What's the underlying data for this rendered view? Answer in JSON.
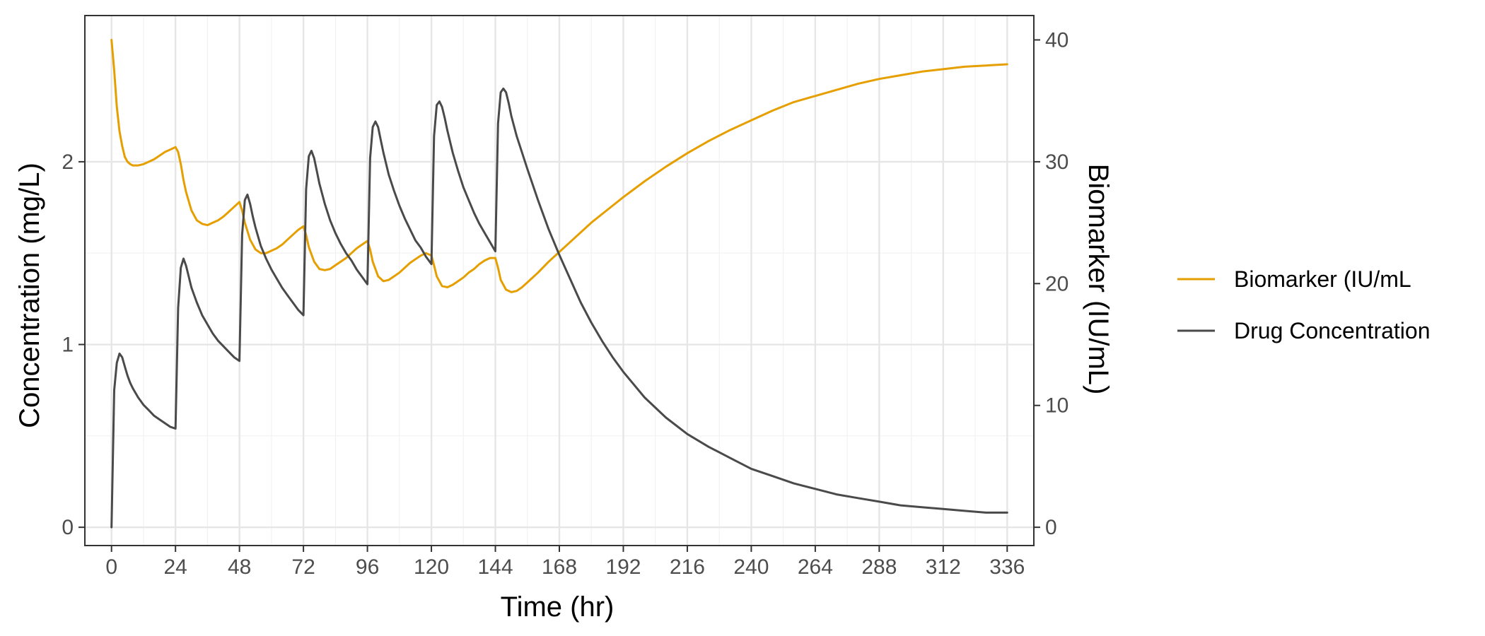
{
  "chart_data": {
    "type": "line",
    "title": "",
    "xlabel": "Time (hr)",
    "ylabel_left": "Concentration (mg/L)",
    "ylabel_right": "Biomarker (IU/mL)",
    "xlim": [
      -10,
      346
    ],
    "ylim_left": [
      -0.1,
      2.8
    ],
    "ylim_right": [
      -1.5,
      42
    ],
    "x_ticks": [
      0,
      24,
      48,
      72,
      96,
      120,
      144,
      168,
      192,
      216,
      240,
      264,
      288,
      312,
      336
    ],
    "y_ticks_left": [
      0,
      1,
      2
    ],
    "y_ticks_right": [
      0,
      10,
      20,
      30,
      40
    ],
    "grid": true,
    "legend_position": "right",
    "colors": {
      "biomarker": "#E69F00",
      "biomarker_axis_title": "#D4880A",
      "drug": "#4A4A4A",
      "grid_major": "#E6E6E6",
      "grid_minor": "#F2F2F2",
      "panel_border": "#333333"
    },
    "series": [
      {
        "name": "Biomarker (IU/mL",
        "axis": "right",
        "x": [
          0,
          1,
          2,
          3,
          4,
          5,
          6,
          7,
          8,
          9,
          10,
          12,
          14,
          16,
          18,
          20,
          22,
          24,
          25,
          26,
          27,
          28,
          30,
          32,
          34,
          36,
          38,
          40,
          42,
          44,
          46,
          48,
          49,
          50,
          52,
          54,
          56,
          58,
          60,
          62,
          64,
          66,
          68,
          70,
          72,
          73,
          74,
          76,
          78,
          80,
          82,
          84,
          86,
          88,
          90,
          92,
          94,
          96,
          97,
          98,
          100,
          102,
          104,
          106,
          108,
          110,
          112,
          114,
          116,
          118,
          120,
          121,
          122,
          124,
          126,
          128,
          130,
          132,
          134,
          136,
          138,
          140,
          142,
          144,
          145,
          146,
          148,
          150,
          152,
          154,
          156,
          160,
          164,
          168,
          172,
          176,
          180,
          184,
          188,
          192,
          200,
          208,
          216,
          224,
          232,
          240,
          248,
          256,
          264,
          272,
          280,
          288,
          296,
          304,
          312,
          320,
          328,
          336
        ],
        "y": [
          40.0,
          37.5,
          34.5,
          32.5,
          31.3,
          30.4,
          30.0,
          29.8,
          29.7,
          29.7,
          29.7,
          29.8,
          30.0,
          30.2,
          30.5,
          30.8,
          31.0,
          31.2,
          30.8,
          29.8,
          28.5,
          27.5,
          26.0,
          25.2,
          24.9,
          24.8,
          25.0,
          25.2,
          25.5,
          25.9,
          26.3,
          26.7,
          26.0,
          25.0,
          23.6,
          22.8,
          22.5,
          22.5,
          22.7,
          22.9,
          23.2,
          23.6,
          24.0,
          24.4,
          24.7,
          24.0,
          23.0,
          21.8,
          21.2,
          21.1,
          21.2,
          21.5,
          21.8,
          22.1,
          22.5,
          22.9,
          23.2,
          23.5,
          22.8,
          21.8,
          20.6,
          20.2,
          20.3,
          20.6,
          20.9,
          21.3,
          21.7,
          22.0,
          22.3,
          22.5,
          22.3,
          21.5,
          20.6,
          19.8,
          19.7,
          19.9,
          20.2,
          20.5,
          20.9,
          21.2,
          21.6,
          21.9,
          22.1,
          22.1,
          21.3,
          20.3,
          19.5,
          19.3,
          19.4,
          19.7,
          20.1,
          20.9,
          21.8,
          22.6,
          23.4,
          24.2,
          25.0,
          25.7,
          26.4,
          27.1,
          28.4,
          29.6,
          30.7,
          31.7,
          32.6,
          33.4,
          34.2,
          34.9,
          35.4,
          35.9,
          36.4,
          36.8,
          37.1,
          37.4,
          37.6,
          37.8,
          37.9,
          38.0
        ]
      },
      {
        "name": "Drug Concentration",
        "axis": "left",
        "x": [
          0,
          1,
          2,
          3,
          4,
          5,
          6,
          7,
          8,
          10,
          12,
          14,
          16,
          18,
          20,
          22,
          24,
          25,
          26,
          27,
          28,
          29,
          30,
          32,
          34,
          36,
          38,
          40,
          42,
          44,
          46,
          48,
          49,
          50,
          51,
          52,
          53,
          54,
          56,
          58,
          60,
          62,
          64,
          66,
          68,
          70,
          72,
          73,
          74,
          75,
          76,
          77,
          78,
          80,
          82,
          84,
          86,
          88,
          90,
          92,
          94,
          96,
          97,
          98,
          99,
          100,
          101,
          102,
          104,
          106,
          108,
          110,
          112,
          114,
          116,
          118,
          120,
          121,
          122,
          123,
          124,
          125,
          126,
          128,
          130,
          132,
          134,
          136,
          138,
          140,
          142,
          144,
          145,
          146,
          147,
          148,
          149,
          150,
          152,
          156,
          160,
          164,
          168,
          172,
          176,
          180,
          184,
          188,
          192,
          200,
          208,
          216,
          224,
          232,
          240,
          248,
          256,
          264,
          272,
          280,
          288,
          296,
          304,
          312,
          320,
          328,
          336
        ],
        "y": [
          0.0,
          0.75,
          0.9,
          0.95,
          0.93,
          0.88,
          0.83,
          0.79,
          0.76,
          0.71,
          0.67,
          0.64,
          0.61,
          0.59,
          0.57,
          0.55,
          0.54,
          1.2,
          1.42,
          1.47,
          1.43,
          1.37,
          1.31,
          1.23,
          1.16,
          1.11,
          1.06,
          1.02,
          0.99,
          0.96,
          0.93,
          0.91,
          1.6,
          1.79,
          1.82,
          1.77,
          1.7,
          1.64,
          1.54,
          1.47,
          1.41,
          1.36,
          1.31,
          1.27,
          1.23,
          1.19,
          1.16,
          1.85,
          2.03,
          2.06,
          2.02,
          1.95,
          1.88,
          1.77,
          1.68,
          1.61,
          1.55,
          1.5,
          1.46,
          1.41,
          1.37,
          1.33,
          2.02,
          2.19,
          2.22,
          2.19,
          2.12,
          2.05,
          1.93,
          1.84,
          1.76,
          1.69,
          1.63,
          1.57,
          1.53,
          1.48,
          1.44,
          2.14,
          2.31,
          2.33,
          2.3,
          2.24,
          2.17,
          2.05,
          1.95,
          1.86,
          1.79,
          1.72,
          1.66,
          1.61,
          1.56,
          1.51,
          2.21,
          2.38,
          2.4,
          2.38,
          2.32,
          2.25,
          2.14,
          1.96,
          1.79,
          1.63,
          1.49,
          1.36,
          1.23,
          1.12,
          1.02,
          0.93,
          0.85,
          0.71,
          0.6,
          0.51,
          0.44,
          0.38,
          0.32,
          0.28,
          0.24,
          0.21,
          0.18,
          0.16,
          0.14,
          0.12,
          0.11,
          0.1,
          0.09,
          0.08,
          0.08
        ]
      }
    ]
  }
}
